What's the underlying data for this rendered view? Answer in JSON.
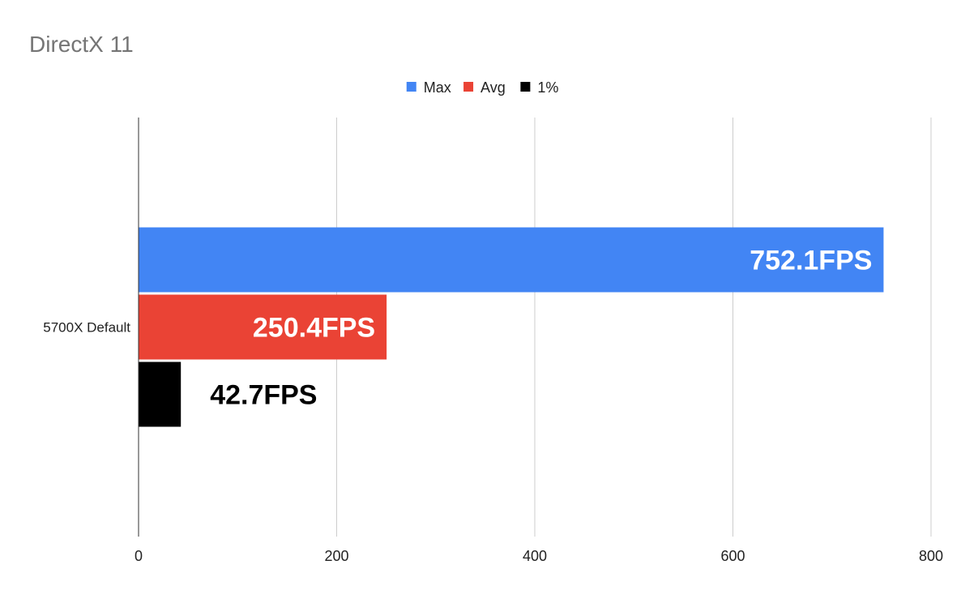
{
  "chart_data": {
    "type": "bar",
    "orientation": "horizontal",
    "title": "DirectX 11",
    "categories": [
      "5700X Default"
    ],
    "series": [
      {
        "name": "Max",
        "values": [
          752.1
        ],
        "color": "#4285f4",
        "data_label": "752.1FPS",
        "label_color": "#ffffff",
        "label_position": "inside-end"
      },
      {
        "name": "Avg",
        "values": [
          250.4
        ],
        "color": "#ea4335",
        "data_label": "250.4FPS",
        "label_color": "#ffffff",
        "label_position": "inside-end"
      },
      {
        "name": "1%",
        "values": [
          42.7
        ],
        "color": "#000000",
        "data_label": "42.7FPS",
        "label_color": "#000000",
        "label_position": "outside-end"
      }
    ],
    "xlim": [
      0,
      800
    ],
    "x_ticks": [
      0,
      200,
      400,
      600,
      800
    ],
    "xlabel": "",
    "ylabel": "",
    "grid": true,
    "legend": "top-center",
    "colors": {
      "title": "#757575",
      "gridline": "#cccccc",
      "axis_line": "#333333",
      "text": "#222222"
    }
  }
}
